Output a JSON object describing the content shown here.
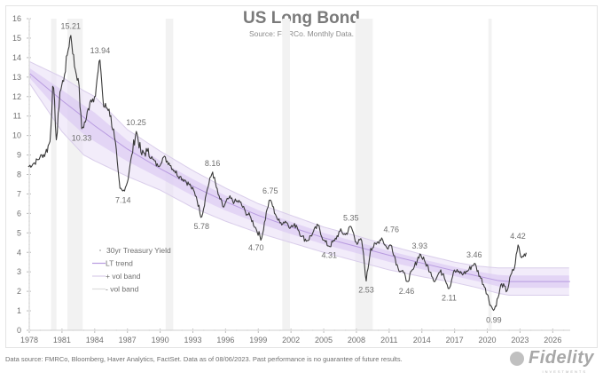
{
  "header": {
    "title": "US Long Bond",
    "subtitle": "Source: FMRCo.  Monthly Data."
  },
  "footer": {
    "note": "Data source: FMRCo, Bloomberg, Haver Analytics, FactSet. Data as of 08/06/2023. Past performance is no guarantee of future results.",
    "brand": "Fidelity",
    "brand_sub": "INVESTMENTS"
  },
  "colors": {
    "yield_line": "#3a3a3a",
    "trend": "#b89be0",
    "band_fill": "#e7dcf6",
    "band_edge": "#d9cdea",
    "recession": "#f2f2f2",
    "axis_text": "#707070"
  },
  "chart_data": {
    "type": "line",
    "title": "US Long Bond",
    "subtitle": "Source: FMRCo.  Monthly Data.",
    "xlabel": "",
    "ylabel": "",
    "xlim": [
      1978,
      2027.6
    ],
    "ylim": [
      0,
      16
    ],
    "x_ticks": [
      "1978",
      "1981",
      "1984",
      "1987",
      "1990",
      "1993",
      "1996",
      "1999",
      "2002",
      "2005",
      "2008",
      "2011",
      "2014",
      "2017",
      "2020",
      "2023",
      "2026"
    ],
    "y_ticks": [
      "0",
      "1",
      "2",
      "3",
      "4",
      "5",
      "6",
      "7",
      "8",
      "9",
      "10",
      "11",
      "12",
      "13",
      "14",
      "15",
      "16"
    ],
    "legend": {
      "placement": "left-middle",
      "entries": [
        "30yr Treasury Yield",
        "LT trend",
        "+ vol band",
        "- vol band"
      ]
    },
    "recessions": [
      [
        1980.0,
        1980.5
      ],
      [
        1981.5,
        1982.9
      ],
      [
        1990.5,
        1991.2
      ],
      [
        2001.2,
        2001.9
      ],
      [
        2007.9,
        2009.5
      ],
      [
        2020.1,
        2020.4
      ]
    ],
    "series": [
      {
        "name": "30yr Treasury Yield",
        "x": [
          1977.9,
          1978.5,
          1979.0,
          1979.5,
          1979.9,
          1980.2,
          1980.5,
          1980.8,
          1981.2,
          1981.5,
          1981.8,
          1982.2,
          1982.5,
          1982.8,
          1983.2,
          1983.6,
          1984.0,
          1984.5,
          1984.8,
          1985.3,
          1985.8,
          1986.3,
          1986.6,
          1987.0,
          1987.4,
          1987.8,
          1988.3,
          1988.8,
          1989.3,
          1989.8,
          1990.3,
          1990.8,
          1991.3,
          1991.8,
          1992.3,
          1992.8,
          1993.3,
          1993.8,
          1994.3,
          1994.8,
          1995.3,
          1995.8,
          1996.3,
          1996.8,
          1997.3,
          1997.8,
          1998.3,
          1998.8,
          1999.3,
          1999.8,
          2000.1,
          2000.6,
          2001.0,
          2001.5,
          2002.0,
          2002.5,
          2003.0,
          2003.5,
          2004.0,
          2004.5,
          2005.0,
          2005.5,
          2006.0,
          2006.5,
          2007.0,
          2007.5,
          2008.0,
          2008.5,
          2008.9,
          2009.3,
          2009.8,
          2010.3,
          2010.8,
          2011.2,
          2011.8,
          2012.3,
          2012.6,
          2013.2,
          2013.8,
          2014.3,
          2014.8,
          2015.2,
          2015.6,
          2016.0,
          2016.5,
          2016.9,
          2017.3,
          2017.8,
          2018.3,
          2018.8,
          2019.3,
          2019.8,
          2020.3,
          2020.6,
          2021.0,
          2021.3,
          2021.8,
          2022.2,
          2022.5,
          2022.8,
          2023.1,
          2023.6
        ],
        "values": [
          8.4,
          8.6,
          8.9,
          9.1,
          9.7,
          12.8,
          9.6,
          12.2,
          13.0,
          14.2,
          15.21,
          13.4,
          12.9,
          10.33,
          10.8,
          11.8,
          12.0,
          13.94,
          11.5,
          11.4,
          10.0,
          7.3,
          7.14,
          7.6,
          9.0,
          10.25,
          9.0,
          9.2,
          8.8,
          8.4,
          8.9,
          8.6,
          8.2,
          7.9,
          7.7,
          7.4,
          6.9,
          5.78,
          7.2,
          8.16,
          7.0,
          6.3,
          6.8,
          6.6,
          6.6,
          6.1,
          5.8,
          5.2,
          4.7,
          6.2,
          6.75,
          5.9,
          5.5,
          5.6,
          5.3,
          5.4,
          4.8,
          4.6,
          5.0,
          5.4,
          4.6,
          4.31,
          4.6,
          5.1,
          4.9,
          5.35,
          4.5,
          4.6,
          2.53,
          4.2,
          4.4,
          4.76,
          4.2,
          4.4,
          3.2,
          3.0,
          2.46,
          3.1,
          3.93,
          3.5,
          3.0,
          2.5,
          3.0,
          2.9,
          2.11,
          3.0,
          3.0,
          2.9,
          3.1,
          3.46,
          2.8,
          2.2,
          1.3,
          0.99,
          1.7,
          2.4,
          2.0,
          2.9,
          3.2,
          4.42,
          3.7,
          4.0
        ]
      },
      {
        "name": "LT trend",
        "x": [
          1978,
          1981,
          1984,
          1987,
          1990,
          1993,
          1996,
          1999,
          2002,
          2005,
          2008,
          2011,
          2014,
          2017,
          2019,
          2021,
          2022,
          2027.6
        ],
        "values": [
          13.2,
          11.8,
          10.5,
          9.3,
          8.3,
          7.4,
          6.6,
          5.9,
          5.3,
          4.75,
          4.3,
          3.85,
          3.45,
          3.05,
          2.8,
          2.55,
          2.5,
          2.5
        ]
      },
      {
        "name": "+ vol band",
        "x": [
          1978,
          1981,
          1983,
          1984,
          1987,
          1990,
          1993,
          1996,
          1999,
          2002,
          2005,
          2008,
          2011,
          2014,
          2017,
          2019,
          2021,
          2022,
          2027.6
        ],
        "values": [
          13.8,
          13.0,
          12.3,
          12.0,
          10.3,
          9.2,
          8.2,
          7.3,
          6.5,
          5.9,
          5.3,
          4.85,
          4.35,
          3.9,
          3.5,
          3.3,
          3.2,
          3.2,
          3.2
        ]
      },
      {
        "name": "- vol band",
        "x": [
          1978,
          1981,
          1983,
          1984,
          1987,
          1990,
          1993,
          1996,
          1999,
          2002,
          2005,
          2008,
          2011,
          2014,
          2017,
          2019,
          2021,
          2022,
          2027.6
        ],
        "values": [
          12.7,
          10.2,
          9.0,
          8.7,
          7.9,
          7.2,
          6.3,
          5.6,
          5.0,
          4.5,
          4.0,
          3.55,
          3.1,
          2.75,
          2.45,
          2.2,
          1.9,
          1.8,
          1.8
        ]
      }
    ],
    "annotations": [
      {
        "x": 1981.8,
        "y": 15.21,
        "text": "15.21",
        "pos": "above"
      },
      {
        "x": 1984.5,
        "y": 13.94,
        "text": "13.94",
        "pos": "above"
      },
      {
        "x": 1982.8,
        "y": 10.33,
        "text": "10.33",
        "pos": "below"
      },
      {
        "x": 1987.8,
        "y": 10.25,
        "text": "10.25",
        "pos": "above"
      },
      {
        "x": 1986.6,
        "y": 7.14,
        "text": "7.14",
        "pos": "below"
      },
      {
        "x": 1994.8,
        "y": 8.16,
        "text": "8.16",
        "pos": "above"
      },
      {
        "x": 1993.8,
        "y": 5.78,
        "text": "5.78",
        "pos": "below"
      },
      {
        "x": 2000.1,
        "y": 6.75,
        "text": "6.75",
        "pos": "above"
      },
      {
        "x": 1998.8,
        "y": 4.7,
        "text": "4.70",
        "pos": "below"
      },
      {
        "x": 2005.5,
        "y": 4.31,
        "text": "4.31",
        "pos": "below"
      },
      {
        "x": 2007.5,
        "y": 5.35,
        "text": "5.35",
        "pos": "above"
      },
      {
        "x": 2008.9,
        "y": 2.53,
        "text": "2.53",
        "pos": "below"
      },
      {
        "x": 2011.2,
        "y": 4.76,
        "text": "4.76",
        "pos": "above"
      },
      {
        "x": 2012.6,
        "y": 2.46,
        "text": "2.46",
        "pos": "below"
      },
      {
        "x": 2013.8,
        "y": 3.93,
        "text": "3.93",
        "pos": "above"
      },
      {
        "x": 2016.5,
        "y": 2.11,
        "text": "2.11",
        "pos": "below"
      },
      {
        "x": 2018.8,
        "y": 3.46,
        "text": "3.46",
        "pos": "above"
      },
      {
        "x": 2020.6,
        "y": 0.99,
        "text": "0.99",
        "pos": "below"
      },
      {
        "x": 2022.8,
        "y": 4.42,
        "text": "4.42",
        "pos": "above"
      }
    ]
  }
}
